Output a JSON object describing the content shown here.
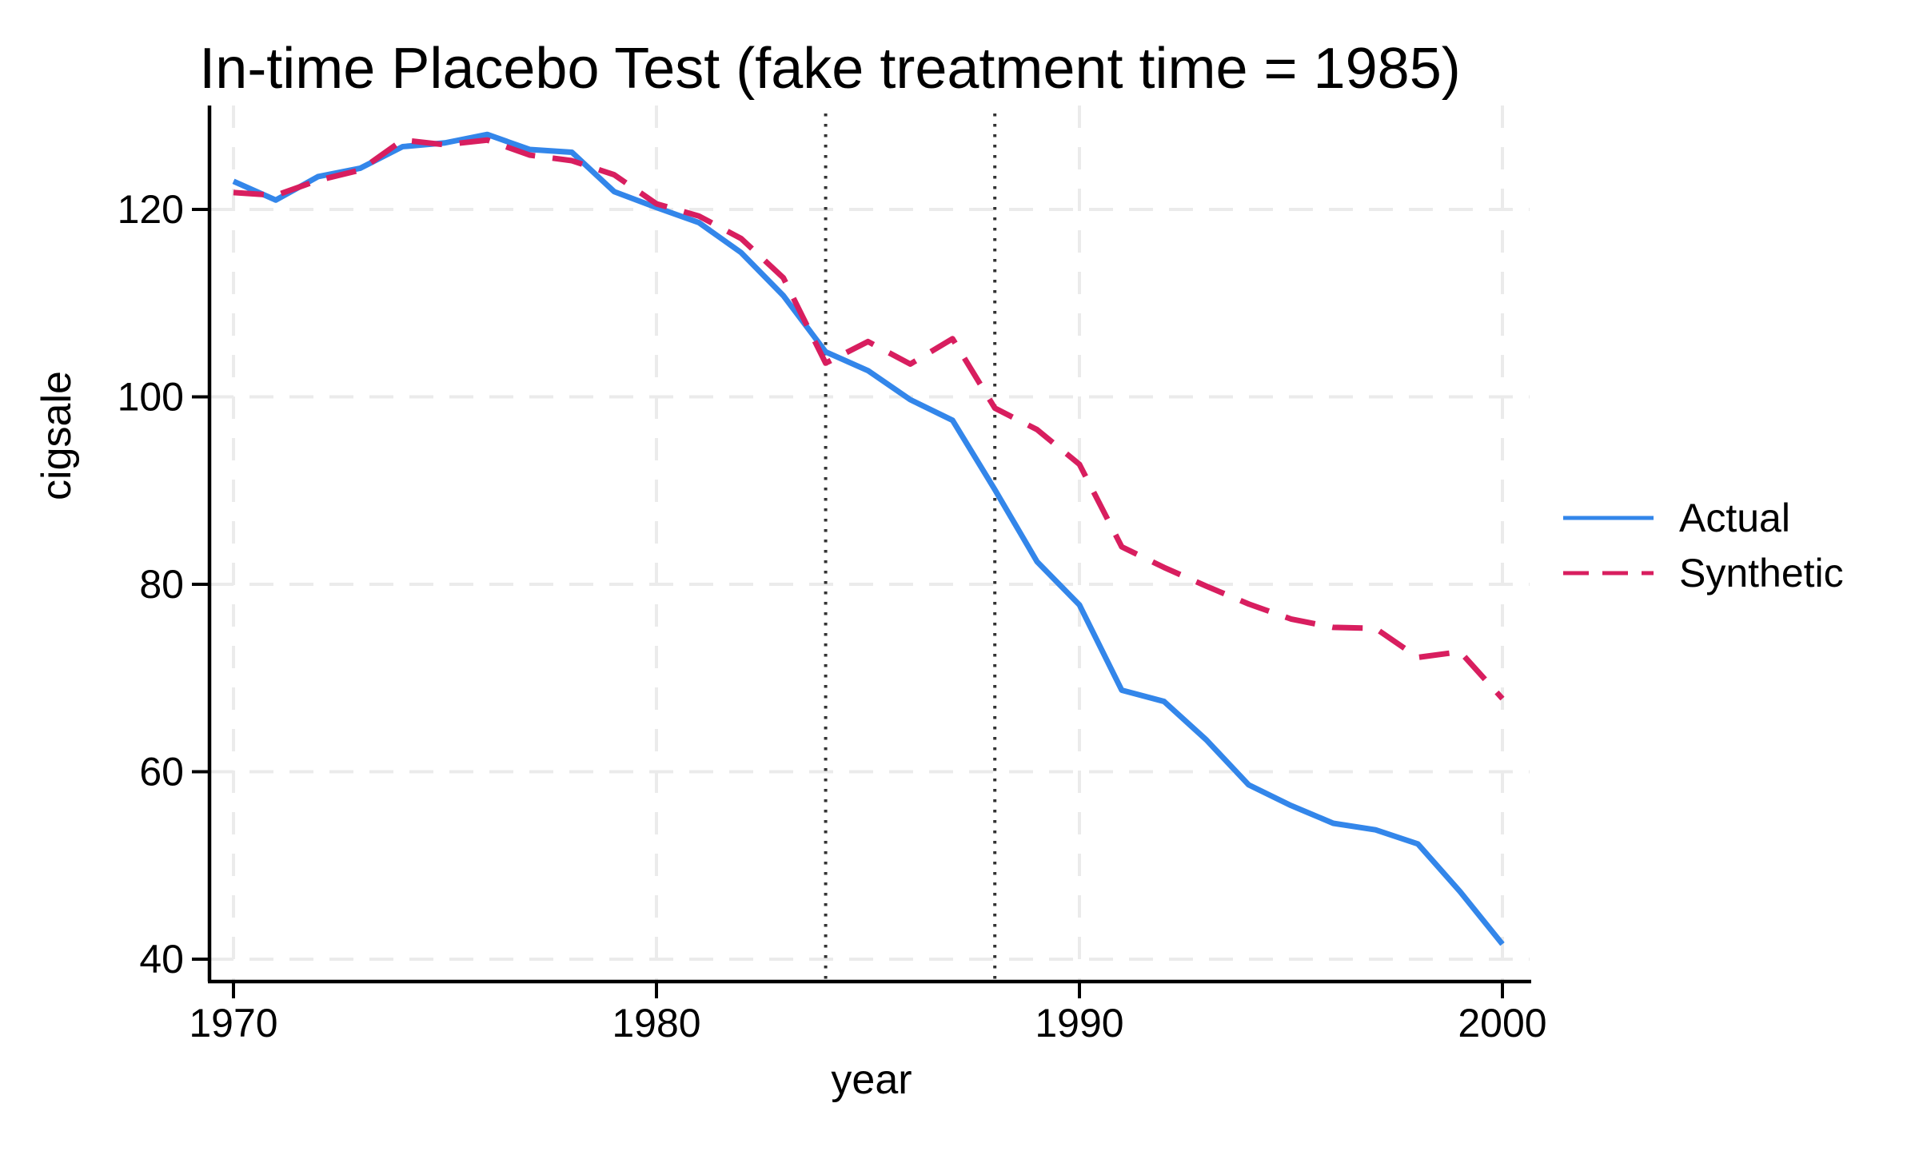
{
  "title": "In-time Placebo Test (fake treatment time = 1985)",
  "x_axis": {
    "label": "year",
    "tick_labels": [
      "1970",
      "1980",
      "1990",
      "2000"
    ]
  },
  "y_axis": {
    "label": "cigsale",
    "tick_labels": [
      "40",
      "60",
      "80",
      "100",
      "120"
    ]
  },
  "legend": {
    "position": "right",
    "items": [
      {
        "label": "Actual",
        "line_style": "solid"
      },
      {
        "label": "Synthetic",
        "line_style": "dashed"
      }
    ]
  },
  "colors": {
    "actual": "#3386EA",
    "synthetic": "#D81E5F",
    "grid": "#EBEBEB",
    "vline": "#333333",
    "axis": "#000000",
    "background": "#FFFFFF"
  },
  "chart_data": {
    "type": "line",
    "title": "In-time Placebo Test (fake treatment time = 1985)",
    "xlabel": "year",
    "ylabel": "cigsale",
    "x": [
      1970,
      1971,
      1972,
      1973,
      1974,
      1975,
      1976,
      1977,
      1978,
      1979,
      1980,
      1981,
      1982,
      1983,
      1984,
      1985,
      1986,
      1987,
      1988,
      1989,
      1990,
      1991,
      1992,
      1993,
      1994,
      1995,
      1996,
      1997,
      1998,
      1999,
      2000
    ],
    "series": [
      {
        "name": "Actual",
        "style": "solid",
        "color": "#3386EA",
        "values": [
          123.0,
          121.0,
          123.5,
          124.4,
          126.7,
          127.1,
          128.0,
          126.4,
          126.1,
          121.9,
          120.2,
          118.6,
          115.4,
          110.8,
          104.8,
          102.8,
          99.7,
          97.5,
          90.1,
          82.4,
          77.8,
          68.7,
          67.5,
          63.4,
          58.6,
          56.4,
          54.5,
          53.8,
          52.3,
          47.2,
          41.6
        ]
      },
      {
        "name": "Synthetic",
        "style": "dashed",
        "color": "#D81E5F",
        "values": [
          121.8,
          121.5,
          123.1,
          124.2,
          127.4,
          126.9,
          127.4,
          125.8,
          125.2,
          123.7,
          120.6,
          119.3,
          116.9,
          112.7,
          103.6,
          105.9,
          103.5,
          106.2,
          98.8,
          96.5,
          92.8,
          84.0,
          81.8,
          79.8,
          77.9,
          76.3,
          75.4,
          75.3,
          72.2,
          72.8,
          67.8
        ]
      }
    ],
    "reference_vlines": [
      1984,
      1988
    ],
    "xticks": [
      1970,
      1980,
      1990,
      2000
    ],
    "yticks": [
      40,
      60,
      80,
      100,
      120
    ],
    "xlim": [
      1969.4,
      2000.7
    ],
    "ylim": [
      37.6,
      130.8
    ],
    "grid": true,
    "grid_style": "dashed",
    "legend_position": "right-outside"
  }
}
